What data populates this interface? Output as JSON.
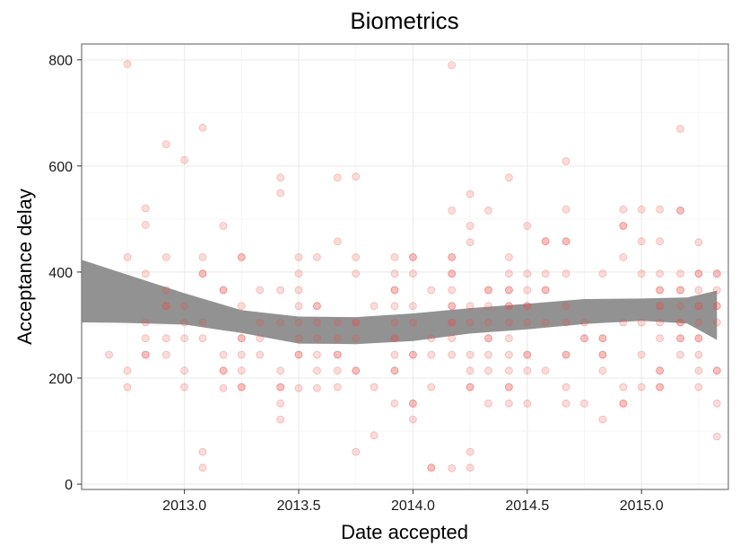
{
  "chart_data": {
    "type": "scatter",
    "title": "Biometrics",
    "xlabel": "Date accepted",
    "ylabel": "Acceptance delay",
    "xlim": [
      2012.55,
      2015.38
    ],
    "ylim": [
      -10,
      830
    ],
    "x_ticks": [
      {
        "value": 2013.0,
        "label": "2013.0"
      },
      {
        "value": 2013.5,
        "label": "2013.5"
      },
      {
        "value": 2014.0,
        "label": "2014.0"
      },
      {
        "value": 2014.5,
        "label": "2014.5"
      },
      {
        "value": 2015.0,
        "label": "2015.0"
      }
    ],
    "y_ticks": [
      {
        "value": 0,
        "label": "0"
      },
      {
        "value": 200,
        "label": "200"
      },
      {
        "value": 400,
        "label": "400"
      },
      {
        "value": 600,
        "label": "600"
      },
      {
        "value": 800,
        "label": "800"
      }
    ],
    "grid": true,
    "point_color": "#e8524a",
    "smooth_color": "#8c8c8c",
    "points": [
      [
        2012.67,
        244
      ],
      [
        2012.75,
        792
      ],
      [
        2012.75,
        428
      ],
      [
        2012.75,
        214
      ],
      [
        2012.75,
        183
      ],
      [
        2012.83,
        520
      ],
      [
        2012.83,
        489
      ],
      [
        2012.83,
        397
      ],
      [
        2012.83,
        305
      ],
      [
        2012.83,
        275
      ],
      [
        2012.83,
        244
      ],
      [
        2012.83,
        244
      ],
      [
        2012.92,
        641
      ],
      [
        2012.92,
        428
      ],
      [
        2012.92,
        366
      ],
      [
        2012.92,
        336
      ],
      [
        2012.92,
        336
      ],
      [
        2012.92,
        275
      ],
      [
        2012.92,
        244
      ],
      [
        2013.0,
        611
      ],
      [
        2013.0,
        336
      ],
      [
        2013.0,
        305
      ],
      [
        2013.0,
        275
      ],
      [
        2013.0,
        214
      ],
      [
        2013.0,
        183
      ],
      [
        2013.08,
        672
      ],
      [
        2013.08,
        428
      ],
      [
        2013.08,
        397
      ],
      [
        2013.08,
        397
      ],
      [
        2013.08,
        305
      ],
      [
        2013.08,
        275
      ],
      [
        2013.08,
        61
      ],
      [
        2013.08,
        31
      ],
      [
        2013.17,
        487
      ],
      [
        2013.17,
        366
      ],
      [
        2013.17,
        366
      ],
      [
        2013.17,
        244
      ],
      [
        2013.17,
        214
      ],
      [
        2013.17,
        214
      ],
      [
        2013.17,
        181
      ],
      [
        2013.25,
        428
      ],
      [
        2013.25,
        428
      ],
      [
        2013.25,
        336
      ],
      [
        2013.25,
        275
      ],
      [
        2013.25,
        275
      ],
      [
        2013.25,
        244
      ],
      [
        2013.25,
        214
      ],
      [
        2013.25,
        183
      ],
      [
        2013.25,
        183
      ],
      [
        2013.33,
        366
      ],
      [
        2013.33,
        305
      ],
      [
        2013.33,
        275
      ],
      [
        2013.33,
        244
      ],
      [
        2013.42,
        578
      ],
      [
        2013.42,
        549
      ],
      [
        2013.42,
        366
      ],
      [
        2013.42,
        305
      ],
      [
        2013.42,
        214
      ],
      [
        2013.42,
        183
      ],
      [
        2013.42,
        183
      ],
      [
        2013.42,
        152
      ],
      [
        2013.42,
        122
      ],
      [
        2013.5,
        428
      ],
      [
        2013.5,
        397
      ],
      [
        2013.5,
        366
      ],
      [
        2013.5,
        336
      ],
      [
        2013.5,
        305
      ],
      [
        2013.5,
        275
      ],
      [
        2013.5,
        244
      ],
      [
        2013.5,
        244
      ],
      [
        2013.5,
        181
      ],
      [
        2013.58,
        428
      ],
      [
        2013.58,
        336
      ],
      [
        2013.58,
        336
      ],
      [
        2013.58,
        305
      ],
      [
        2013.58,
        275
      ],
      [
        2013.58,
        244
      ],
      [
        2013.58,
        214
      ],
      [
        2013.58,
        181
      ],
      [
        2013.67,
        578
      ],
      [
        2013.67,
        458
      ],
      [
        2013.67,
        305
      ],
      [
        2013.67,
        275
      ],
      [
        2013.67,
        244
      ],
      [
        2013.67,
        244
      ],
      [
        2013.67,
        214
      ],
      [
        2013.67,
        183
      ],
      [
        2013.75,
        580
      ],
      [
        2013.75,
        428
      ],
      [
        2013.75,
        397
      ],
      [
        2013.75,
        305
      ],
      [
        2013.75,
        305
      ],
      [
        2013.75,
        275
      ],
      [
        2013.75,
        214
      ],
      [
        2013.75,
        214
      ],
      [
        2013.75,
        61
      ],
      [
        2013.83,
        336
      ],
      [
        2013.83,
        183
      ],
      [
        2013.83,
        92
      ],
      [
        2013.92,
        428
      ],
      [
        2013.92,
        397
      ],
      [
        2013.92,
        366
      ],
      [
        2013.92,
        366
      ],
      [
        2013.92,
        336
      ],
      [
        2013.92,
        305
      ],
      [
        2013.92,
        275
      ],
      [
        2013.92,
        275
      ],
      [
        2013.92,
        244
      ],
      [
        2013.92,
        214
      ],
      [
        2013.92,
        214
      ],
      [
        2013.92,
        152
      ],
      [
        2014.0,
        428
      ],
      [
        2014.0,
        428
      ],
      [
        2014.0,
        397
      ],
      [
        2014.0,
        336
      ],
      [
        2014.0,
        305
      ],
      [
        2014.0,
        244
      ],
      [
        2014.0,
        244
      ],
      [
        2014.0,
        152
      ],
      [
        2014.0,
        152
      ],
      [
        2014.0,
        122
      ],
      [
        2014.08,
        366
      ],
      [
        2014.08,
        275
      ],
      [
        2014.08,
        244
      ],
      [
        2014.08,
        183
      ],
      [
        2014.08,
        31
      ],
      [
        2014.08,
        31
      ],
      [
        2014.17,
        790
      ],
      [
        2014.17,
        516
      ],
      [
        2014.17,
        428
      ],
      [
        2014.17,
        428
      ],
      [
        2014.17,
        397
      ],
      [
        2014.17,
        397
      ],
      [
        2014.17,
        366
      ],
      [
        2014.17,
        336
      ],
      [
        2014.17,
        336
      ],
      [
        2014.17,
        305
      ],
      [
        2014.17,
        305
      ],
      [
        2014.17,
        275
      ],
      [
        2014.17,
        244
      ],
      [
        2014.17,
        30
      ],
      [
        2014.25,
        547
      ],
      [
        2014.25,
        487
      ],
      [
        2014.25,
        456
      ],
      [
        2014.25,
        336
      ],
      [
        2014.25,
        305
      ],
      [
        2014.25,
        244
      ],
      [
        2014.25,
        214
      ],
      [
        2014.25,
        183
      ],
      [
        2014.25,
        183
      ],
      [
        2014.25,
        61
      ],
      [
        2014.25,
        31
      ],
      [
        2014.33,
        516
      ],
      [
        2014.33,
        366
      ],
      [
        2014.33,
        366
      ],
      [
        2014.33,
        336
      ],
      [
        2014.33,
        305
      ],
      [
        2014.33,
        275
      ],
      [
        2014.33,
        275
      ],
      [
        2014.33,
        244
      ],
      [
        2014.33,
        214
      ],
      [
        2014.33,
        152
      ],
      [
        2014.42,
        578
      ],
      [
        2014.42,
        428
      ],
      [
        2014.42,
        397
      ],
      [
        2014.42,
        366
      ],
      [
        2014.42,
        366
      ],
      [
        2014.42,
        336
      ],
      [
        2014.42,
        336
      ],
      [
        2014.42,
        305
      ],
      [
        2014.42,
        275
      ],
      [
        2014.42,
        244
      ],
      [
        2014.42,
        214
      ],
      [
        2014.42,
        183
      ],
      [
        2014.42,
        183
      ],
      [
        2014.42,
        152
      ],
      [
        2014.5,
        487
      ],
      [
        2014.5,
        397
      ],
      [
        2014.5,
        366
      ],
      [
        2014.5,
        336
      ],
      [
        2014.5,
        336
      ],
      [
        2014.5,
        305
      ],
      [
        2014.5,
        244
      ],
      [
        2014.5,
        244
      ],
      [
        2014.5,
        214
      ],
      [
        2014.5,
        152
      ],
      [
        2014.58,
        458
      ],
      [
        2014.58,
        458
      ],
      [
        2014.58,
        397
      ],
      [
        2014.58,
        366
      ],
      [
        2014.58,
        366
      ],
      [
        2014.58,
        305
      ],
      [
        2014.58,
        214
      ],
      [
        2014.67,
        609
      ],
      [
        2014.67,
        518
      ],
      [
        2014.67,
        458
      ],
      [
        2014.67,
        458
      ],
      [
        2014.67,
        397
      ],
      [
        2014.67,
        336
      ],
      [
        2014.67,
        305
      ],
      [
        2014.67,
        244
      ],
      [
        2014.67,
        244
      ],
      [
        2014.67,
        183
      ],
      [
        2014.67,
        152
      ],
      [
        2014.75,
        305
      ],
      [
        2014.75,
        275
      ],
      [
        2014.75,
        275
      ],
      [
        2014.75,
        152
      ],
      [
        2014.83,
        397
      ],
      [
        2014.83,
        275
      ],
      [
        2014.83,
        275
      ],
      [
        2014.83,
        244
      ],
      [
        2014.83,
        244
      ],
      [
        2014.83,
        214
      ],
      [
        2014.83,
        122
      ],
      [
        2014.92,
        518
      ],
      [
        2014.92,
        487
      ],
      [
        2014.92,
        487
      ],
      [
        2014.92,
        428
      ],
      [
        2014.92,
        305
      ],
      [
        2014.92,
        183
      ],
      [
        2014.92,
        152
      ],
      [
        2014.92,
        152
      ],
      [
        2015.0,
        518
      ],
      [
        2015.0,
        458
      ],
      [
        2015.0,
        397
      ],
      [
        2015.0,
        305
      ],
      [
        2015.0,
        244
      ],
      [
        2015.0,
        183
      ],
      [
        2015.08,
        518
      ],
      [
        2015.08,
        458
      ],
      [
        2015.08,
        397
      ],
      [
        2015.08,
        366
      ],
      [
        2015.08,
        366
      ],
      [
        2015.08,
        336
      ],
      [
        2015.08,
        336
      ],
      [
        2015.08,
        305
      ],
      [
        2015.08,
        275
      ],
      [
        2015.08,
        214
      ],
      [
        2015.08,
        214
      ],
      [
        2015.08,
        183
      ],
      [
        2015.08,
        183
      ],
      [
        2015.17,
        670
      ],
      [
        2015.17,
        516
      ],
      [
        2015.17,
        516
      ],
      [
        2015.17,
        397
      ],
      [
        2015.17,
        366
      ],
      [
        2015.17,
        366
      ],
      [
        2015.17,
        336
      ],
      [
        2015.17,
        305
      ],
      [
        2015.17,
        305
      ],
      [
        2015.17,
        275
      ],
      [
        2015.17,
        275
      ],
      [
        2015.17,
        244
      ],
      [
        2015.25,
        456
      ],
      [
        2015.25,
        397
      ],
      [
        2015.25,
        397
      ],
      [
        2015.25,
        366
      ],
      [
        2015.25,
        336
      ],
      [
        2015.25,
        336
      ],
      [
        2015.25,
        305
      ],
      [
        2015.25,
        275
      ],
      [
        2015.25,
        275
      ],
      [
        2015.25,
        244
      ],
      [
        2015.25,
        214
      ],
      [
        2015.25,
        183
      ],
      [
        2015.33,
        397
      ],
      [
        2015.33,
        397
      ],
      [
        2015.33,
        366
      ],
      [
        2015.33,
        336
      ],
      [
        2015.33,
        336
      ],
      [
        2015.33,
        305
      ],
      [
        2015.33,
        214
      ],
      [
        2015.33,
        214
      ],
      [
        2015.33,
        152
      ],
      [
        2015.33,
        90
      ]
    ],
    "smooth_band": {
      "x": [
        2012.55,
        2012.75,
        2013.0,
        2013.25,
        2013.5,
        2013.75,
        2014.0,
        2014.25,
        2014.5,
        2014.75,
        2015.0,
        2015.2,
        2015.33
      ],
      "upper": [
        423,
        395,
        360,
        328,
        316,
        315,
        322,
        332,
        340,
        349,
        350,
        352,
        365
      ],
      "lower": [
        305,
        304,
        301,
        285,
        265,
        264,
        270,
        284,
        292,
        302,
        308,
        303,
        272
      ]
    }
  }
}
